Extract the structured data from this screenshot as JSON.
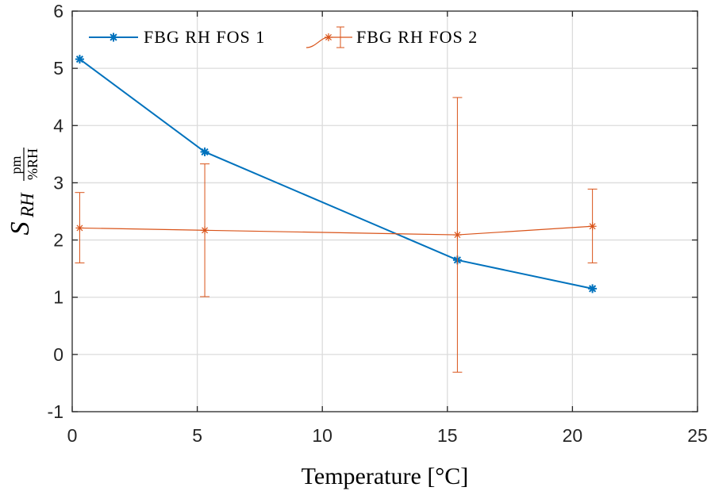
{
  "chart_data": {
    "type": "line",
    "xlabel": "Temperature [°C]",
    "ylabel": {
      "main": "S",
      "sub": "RH",
      "frac_num": "pm",
      "frac_den": "%RH"
    },
    "xlim": [
      0,
      25
    ],
    "ylim": [
      -1,
      6
    ],
    "x_ticks": [
      "0",
      "5",
      "10",
      "15",
      "20",
      "25"
    ],
    "y_ticks": [
      "-1",
      "0",
      "1",
      "2",
      "3",
      "4",
      "5",
      "6"
    ],
    "grid": true,
    "legend_position": "top-left, horizontal",
    "series": [
      {
        "name": "FBG RH FOS 1",
        "color": "#0072BD",
        "marker": "asterisk",
        "x": [
          0.3,
          5.3,
          15.4,
          20.8
        ],
        "y": [
          5.16,
          3.54,
          1.65,
          1.15
        ]
      },
      {
        "name": "FBG RH FOS 2",
        "color": "#D95319",
        "marker": "asterisk",
        "error_bars": true,
        "x": [
          0.3,
          5.3,
          15.4,
          20.8
        ],
        "y": [
          2.21,
          2.17,
          2.09,
          2.24
        ],
        "y_lower": [
          1.6,
          1.01,
          -0.31,
          1.6
        ],
        "y_upper": [
          2.83,
          3.33,
          4.49,
          2.89
        ]
      }
    ]
  }
}
